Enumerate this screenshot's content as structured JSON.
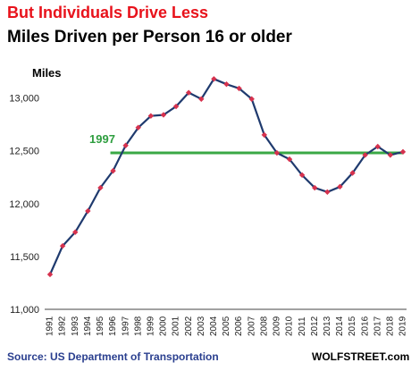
{
  "title": "But Individuals Drive Less",
  "subtitle": "Miles Driven per Person 16 or older",
  "source": "Source: US Department of Transportation",
  "credit": "WOLFSTREET.com",
  "colors": {
    "title": "#e8121b",
    "line": "#1f3a6e",
    "marker": "#d6324e",
    "reference": "#3aa845",
    "annotation": "#2e9e3f"
  },
  "chart_data": {
    "type": "line",
    "ylabel": "Miles",
    "ylim": [
      11000,
      13250
    ],
    "yticks": [
      11000,
      11500,
      12000,
      12500,
      13000
    ],
    "ytick_labels": [
      "11,000",
      "11,500",
      "12,000",
      "12,500",
      "13,000"
    ],
    "x": [
      "1991",
      "1992",
      "1993",
      "1994",
      "1995",
      "1996",
      "1997",
      "1998",
      "1999",
      "2000",
      "2001",
      "2002",
      "2003",
      "2004",
      "2005",
      "2006",
      "2007",
      "2008",
      "2009",
      "2010",
      "2011",
      "2012",
      "2013",
      "2014",
      "2015",
      "2016",
      "2017",
      "2018",
      "2019"
    ],
    "series": [
      {
        "values": [
          11330,
          11600,
          11730,
          11930,
          12150,
          12310,
          12550,
          12720,
          12830,
          12840,
          12920,
          13050,
          12990,
          13180,
          13130,
          13090,
          12990,
          12650,
          12480,
          12420,
          12270,
          12150,
          12110,
          12160,
          12290,
          12460,
          12540,
          12460,
          12490
        ]
      }
    ],
    "reference_line": {
      "value": 12480,
      "from": "1996",
      "to": "2019",
      "label": "1997"
    },
    "grid": false,
    "legend": "none"
  }
}
